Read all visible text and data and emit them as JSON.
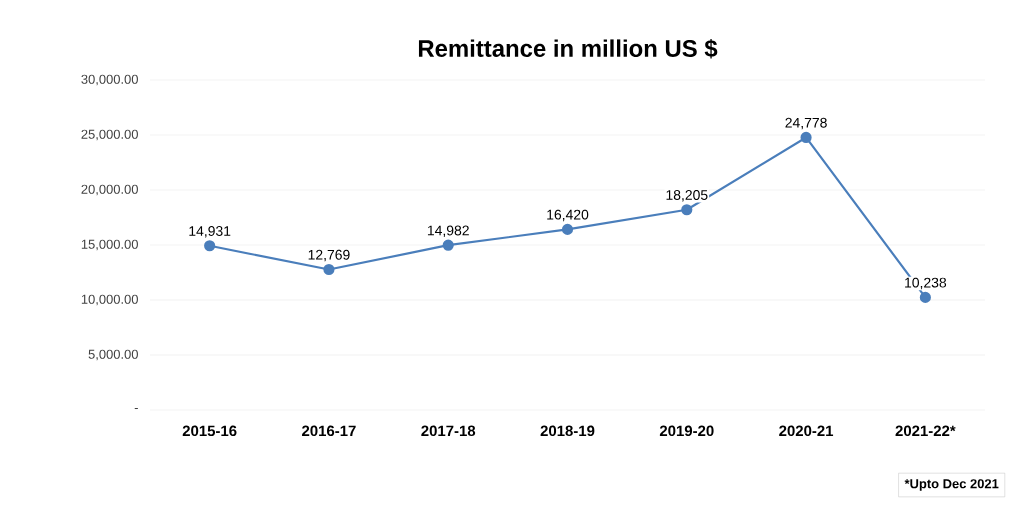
{
  "chart_data": {
    "type": "line",
    "title": "Remittance in million US $",
    "categories": [
      "2015-16",
      "2016-17",
      "2017-18",
      "2018-19",
      "2019-20",
      "2020-21",
      "2021-22*"
    ],
    "values": [
      14931,
      12769,
      14982,
      16420,
      18205,
      24778,
      10238
    ],
    "value_labels": [
      "14,931",
      "12,769",
      "14,982",
      "16,420",
      "18,205",
      "24,778",
      "10,238"
    ],
    "color": "#4a7ebb",
    "marker": "circle",
    "line_style": "solid",
    "grid": "y",
    "ylim": [
      0,
      30000
    ],
    "yticks": [
      {
        "value": 0,
        "label": "-"
      },
      {
        "value": 5000,
        "label": "5,000.00"
      },
      {
        "value": 10000,
        "label": "10,000.00"
      },
      {
        "value": 15000,
        "label": "15,000.00"
      },
      {
        "value": 20000,
        "label": "20,000.00"
      },
      {
        "value": 25000,
        "label": "25,000.00"
      },
      {
        "value": 30000,
        "label": "30,000.00"
      }
    ],
    "annotations": [
      "*Upto Dec 2021"
    ]
  }
}
